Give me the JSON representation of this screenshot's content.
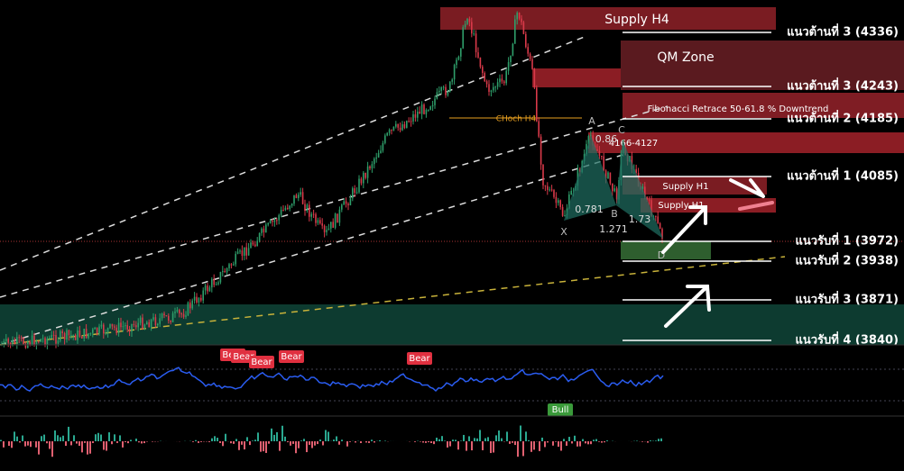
{
  "zones": [
    {
      "label": "Supply H4"
    },
    {
      "label": "QM Zone"
    },
    {
      "label": "Fibonacci Retrace 50-61.8 % Downtrend"
    },
    {
      "label": "4166-4127"
    },
    {
      "label": "Supply H1"
    },
    {
      "label": "Supply H1"
    }
  ],
  "choch": "CHoch H4",
  "levels": [
    {
      "label": "แนวต้านที่ 3 (4336)"
    },
    {
      "label": "แนวต้านที่ 3 (4243)"
    },
    {
      "label": "แนวต้านที่ 2 (4185)"
    },
    {
      "label": "แนวต้านที่ 1 (4085)"
    },
    {
      "label": "แนวรับที่ 1 (3972)"
    },
    {
      "label": "แนวรับที่ 2 (3938)"
    },
    {
      "label": "แนวรับที่ 3 (3871)"
    },
    {
      "label": "แนวรับที่ 4 (3840)"
    }
  ],
  "pattern": {
    "points": [
      "X",
      "A",
      "B",
      "C",
      "D"
    ],
    "ratios": [
      "0.86",
      "0.781",
      "1.271",
      "1.73"
    ]
  },
  "rsi_signals": [
    "Bear",
    "Bear",
    "Bear",
    "Bear",
    "Bear",
    "Bull"
  ]
}
